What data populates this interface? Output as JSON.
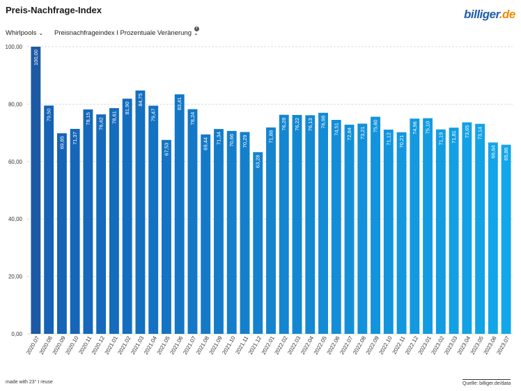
{
  "header": {
    "title": "Preis-Nachfrage-Index",
    "logo_part1": "billiger",
    "logo_part2": ".de"
  },
  "controls": {
    "category": "Whirlpools",
    "metric": "Preisnachfrageindex I Prozentuale Veränerung",
    "info_glyph": "i"
  },
  "footer": {
    "made_with": "made with 23° I reuse",
    "source": "Quelle: billiger.de/data"
  },
  "colors": {
    "bar_first": "#1d5aa3",
    "bar_dark": "#1560b4",
    "bar_light": "#12a7ea",
    "grid": "#cfcfcf",
    "axis_text": "#333333"
  },
  "chart_data": {
    "type": "bar",
    "title": "Preis-Nachfrage-Index",
    "xlabel": "",
    "ylabel": "",
    "ylim": [
      0,
      100
    ],
    "yticks": [
      "0,00",
      "20,00",
      "40,00",
      "60,00",
      "80,00",
      "100,00"
    ],
    "grid": true,
    "categories": [
      "2020.07",
      "2020.08",
      "2020.09",
      "2020.10",
      "2020.11",
      "2020.12",
      "2021.01",
      "2021.02",
      "2021.03",
      "2021.04",
      "2021.05",
      "2021.06",
      "2021.07",
      "2021.08",
      "2021.09",
      "2021.10",
      "2021.11",
      "2021.12",
      "2022.01",
      "2022.02",
      "2022.03",
      "2022.04",
      "2022.05",
      "2022.06",
      "2022.07",
      "2022.08",
      "2022.09",
      "2022.10",
      "2022.11",
      "2022.12",
      "2023.01",
      "2023.02",
      "2023.03",
      "2023.04",
      "2023.05",
      "2023.06",
      "2023.07"
    ],
    "values": [
      100.0,
      79.5,
      69.85,
      71.37,
      78.15,
      76.42,
      78.61,
      81.9,
      84.75,
      79.47,
      67.53,
      83.41,
      78.24,
      69.44,
      71.34,
      70.66,
      70.29,
      63.28,
      71.88,
      76.28,
      76.22,
      76.13,
      76.98,
      74.51,
      72.84,
      73.21,
      75.6,
      71.12,
      70.21,
      74.96,
      75.1,
      71.19,
      71.81,
      73.65,
      73.14,
      66.64,
      65.86
    ],
    "value_labels": [
      "100,00",
      "79,50",
      "69,85",
      "71,37",
      "78,15",
      "76,42",
      "78,61",
      "81,90",
      "84,75",
      "79,47",
      "67,53",
      "83,41",
      "78,24",
      "69,44",
      "71,34",
      "70,66",
      "70,29",
      "63,28",
      "71,88",
      "76,28",
      "76,22",
      "76,13",
      "76,98",
      "74,51",
      "72,84",
      "73,21",
      "75,60",
      "71,12",
      "70,21",
      "74,96",
      "75,10",
      "71,19",
      "71,81",
      "73,65",
      "73,14",
      "66,64",
      "65,86"
    ]
  }
}
